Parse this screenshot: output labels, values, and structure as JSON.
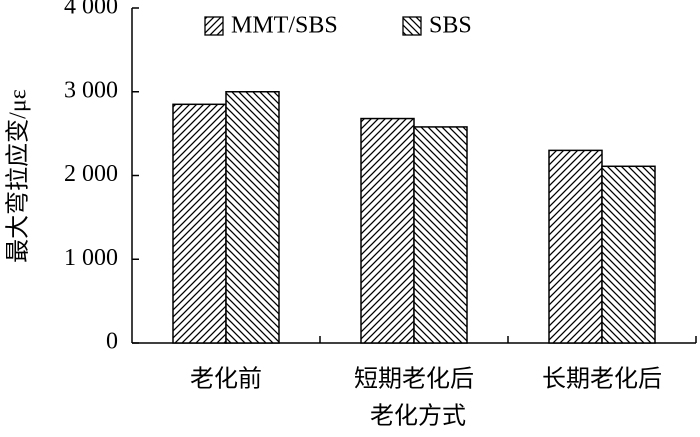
{
  "chart_data": {
    "type": "bar",
    "categories": [
      "老化前",
      "短期老化后",
      "长期老化后"
    ],
    "series": [
      {
        "name": "MMT/SBS",
        "color": "#000000",
        "hatch": "/",
        "values": [
          2850,
          2680,
          2300
        ]
      },
      {
        "name": "SBS",
        "color": "#000000",
        "hatch": "\\",
        "values": [
          3000,
          2580,
          2110
        ]
      }
    ],
    "x_label": "老化方式",
    "y_label": "最大弯拉应变/με",
    "ylim": [
      0,
      4000
    ],
    "yticks": [
      0,
      {
        "value": 1000,
        "label": "1 000"
      },
      {
        "value": 2000,
        "label": "2 000"
      },
      {
        "value": 3000,
        "label": "3 000"
      },
      {
        "value": 4000,
        "label": "4 000"
      }
    ],
    "legend": "top"
  }
}
